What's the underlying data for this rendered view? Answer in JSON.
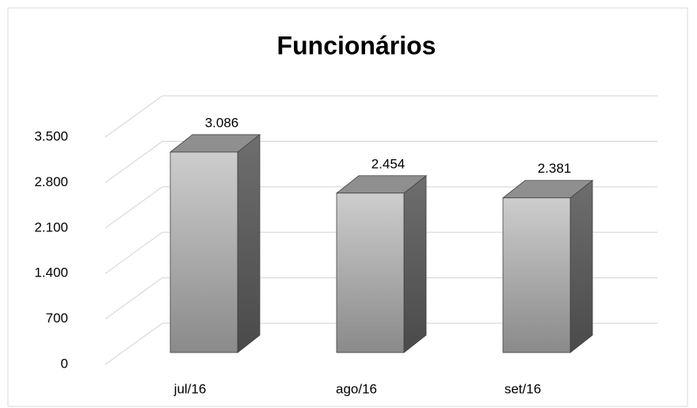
{
  "chart_data": {
    "type": "bar3d",
    "title": "Funcionários",
    "categories": [
      "jul/16",
      "ago/16",
      "set/16"
    ],
    "values": [
      3086,
      2454,
      2381
    ],
    "value_labels": [
      "3.086",
      "2.454",
      "2.381"
    ],
    "color": "#a6a6a6",
    "ylim": [
      0,
      3500
    ],
    "yticks": [
      0,
      700,
      {
        "value": 1400,
        "label": "1.400"
      },
      {
        "value": 2100,
        "label": "2.100"
      },
      {
        "value": 2800,
        "label": "2.800"
      },
      {
        "value": 3500,
        "label": "3.500"
      }
    ],
    "grid": true
  }
}
